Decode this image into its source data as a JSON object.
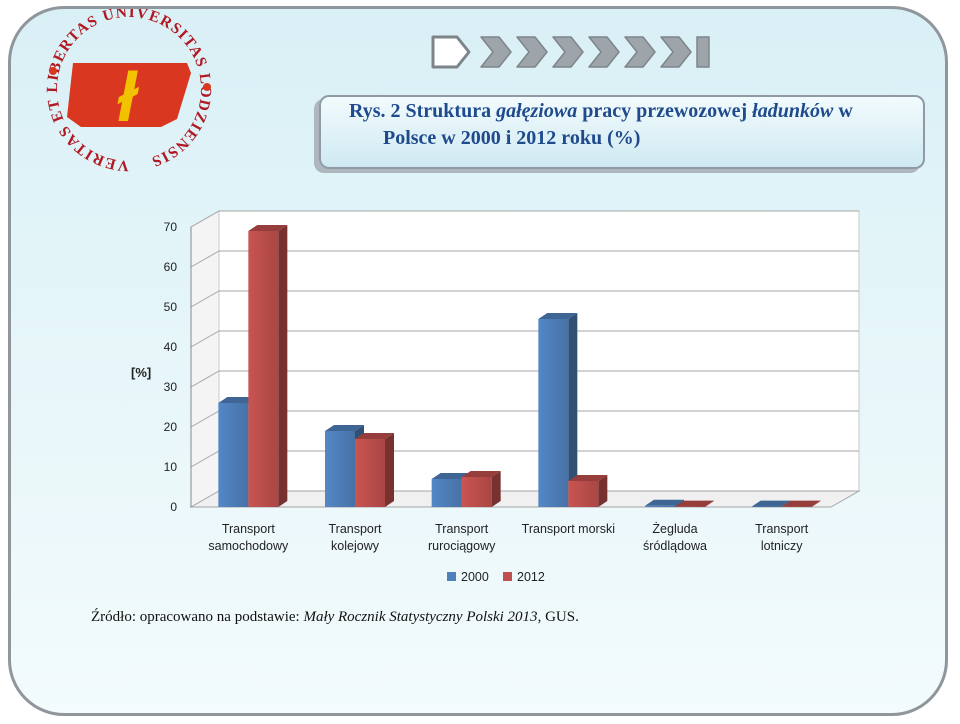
{
  "logo": {
    "ring_text": "VERITAS ET LIBERTAS UNIVERSITAS LODZIENSIS",
    "emblem_letter": "ł",
    "colors": {
      "emblem": "#d9371f",
      "letter": "#f2c200",
      "text": "#b01822"
    }
  },
  "decor": {
    "icon": "chevron-arrow-icon"
  },
  "title": {
    "prefix": "Rys. 2 Struktura ",
    "italic": "gałęziowa",
    "mid": " pracy przewozowej ",
    "italic2": "ładunków",
    "suffix": " w",
    "line2": "Polsce w 2000  i 2012 roku (%)"
  },
  "chart_data": {
    "type": "bar",
    "categories": [
      [
        "Transport",
        "samochodowy"
      ],
      [
        "Transport",
        "kolejowy"
      ],
      [
        "Transport",
        "rurociągowy"
      ],
      [
        "Transport morski"
      ],
      [
        "Żegluda",
        "śródlądowa"
      ],
      [
        "Transport",
        "lotniczy"
      ]
    ],
    "series": [
      {
        "name": "2000",
        "values": [
          26,
          19,
          7,
          47,
          0.3,
          0.1
        ],
        "color": "#4f81bd"
      },
      {
        "name": "2012",
        "values": [
          69,
          17,
          7.5,
          6.5,
          0.1,
          0.1
        ],
        "color": "#c0504d"
      }
    ],
    "ylabel": "[%]",
    "ylim": [
      0,
      70
    ],
    "yticks": [
      "0",
      "10",
      "20",
      "30",
      "40",
      "50",
      "60",
      "70"
    ],
    "grid": true,
    "legend": "bottom"
  },
  "source": {
    "prefix": "Źródło: opracowano na podstawie: ",
    "italic": "Mały Rocznik Statystyczny Polski 2013",
    "suffix": ", GUS."
  }
}
